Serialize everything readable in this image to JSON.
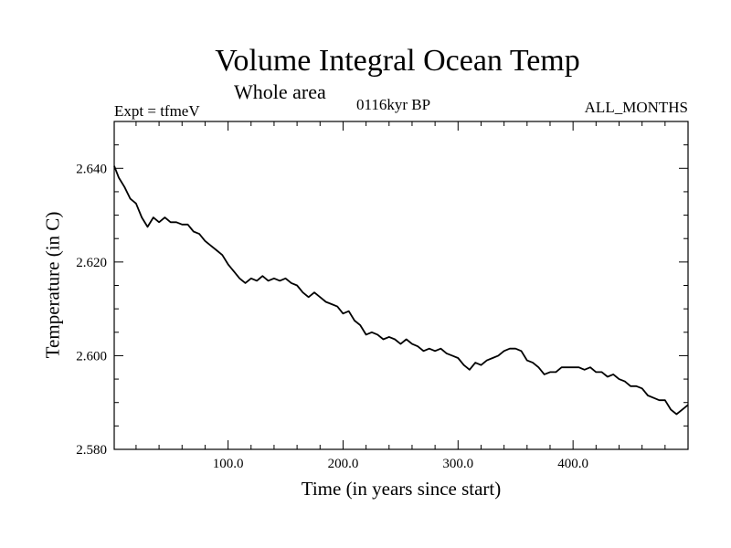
{
  "header": {
    "title": "Volume Integral Ocean Temp",
    "subtitle": "Whole area",
    "expt": "Expt = tfmeV",
    "era": "0116kyr BP",
    "months": "ALL_MONTHS"
  },
  "chart_data": {
    "type": "line",
    "title": "Volume Integral Ocean Temp",
    "subtitle": "Whole area",
    "xlabel": "Time (in years since start)",
    "ylabel": "Temperature (in C)",
    "xlim": [
      1,
      500
    ],
    "ylim": [
      2.58,
      2.65
    ],
    "x_ticks": [
      100,
      200,
      300,
      400
    ],
    "x_tick_labels": [
      "100.0",
      "200.0",
      "300.0",
      "400.0"
    ],
    "y_ticks": [
      2.58,
      2.6,
      2.62,
      2.64
    ],
    "y_tick_labels": [
      "2.580",
      "2.600",
      "2.620",
      "2.640"
    ],
    "grid": false,
    "series": [
      {
        "color": "#000000",
        "x": [
          1,
          5,
          10,
          15,
          20,
          25,
          30,
          35,
          40,
          45,
          50,
          55,
          60,
          65,
          70,
          75,
          80,
          85,
          90,
          95,
          100,
          105,
          110,
          115,
          120,
          125,
          130,
          135,
          140,
          145,
          150,
          155,
          160,
          165,
          170,
          175,
          180,
          185,
          190,
          195,
          200,
          205,
          210,
          215,
          220,
          225,
          230,
          235,
          240,
          245,
          250,
          255,
          260,
          265,
          270,
          275,
          280,
          285,
          290,
          295,
          300,
          305,
          310,
          315,
          320,
          325,
          330,
          335,
          340,
          345,
          350,
          355,
          360,
          365,
          370,
          375,
          380,
          385,
          390,
          395,
          400,
          405,
          410,
          415,
          420,
          425,
          430,
          435,
          440,
          445,
          450,
          455,
          460,
          465,
          470,
          475,
          480,
          485,
          490,
          495,
          500
        ],
        "values": [
          2.6405,
          2.638,
          2.636,
          2.6335,
          2.6325,
          2.6295,
          2.6275,
          2.6295,
          2.6285,
          2.6295,
          2.6285,
          2.6285,
          2.628,
          2.628,
          2.6265,
          2.626,
          2.6245,
          2.6235,
          2.6225,
          2.6215,
          2.6195,
          2.618,
          2.6165,
          2.6155,
          2.6165,
          2.616,
          2.617,
          2.616,
          2.6165,
          2.616,
          2.6165,
          2.6155,
          2.615,
          2.6135,
          2.6125,
          2.6135,
          2.6125,
          2.6115,
          2.611,
          2.6105,
          2.609,
          2.6095,
          2.6075,
          2.6065,
          2.6045,
          2.605,
          2.6045,
          2.6035,
          2.604,
          2.6035,
          2.6025,
          2.6035,
          2.6025,
          2.602,
          2.601,
          2.6015,
          2.601,
          2.6015,
          2.6005,
          2.6,
          2.5995,
          2.598,
          2.597,
          2.5985,
          2.598,
          2.599,
          2.5995,
          2.6,
          2.601,
          2.6015,
          2.6015,
          2.601,
          2.599,
          2.5985,
          2.5975,
          2.596,
          2.5965,
          2.5965,
          2.5975,
          2.5975,
          2.5975,
          2.5975,
          2.597,
          2.5975,
          2.5965,
          2.5965,
          2.5955,
          2.596,
          2.595,
          2.5945,
          2.5935,
          2.5935,
          2.593,
          2.5915,
          2.591,
          2.5905,
          2.5905,
          2.5885,
          2.5875,
          2.5885,
          2.5895
        ]
      }
    ]
  }
}
